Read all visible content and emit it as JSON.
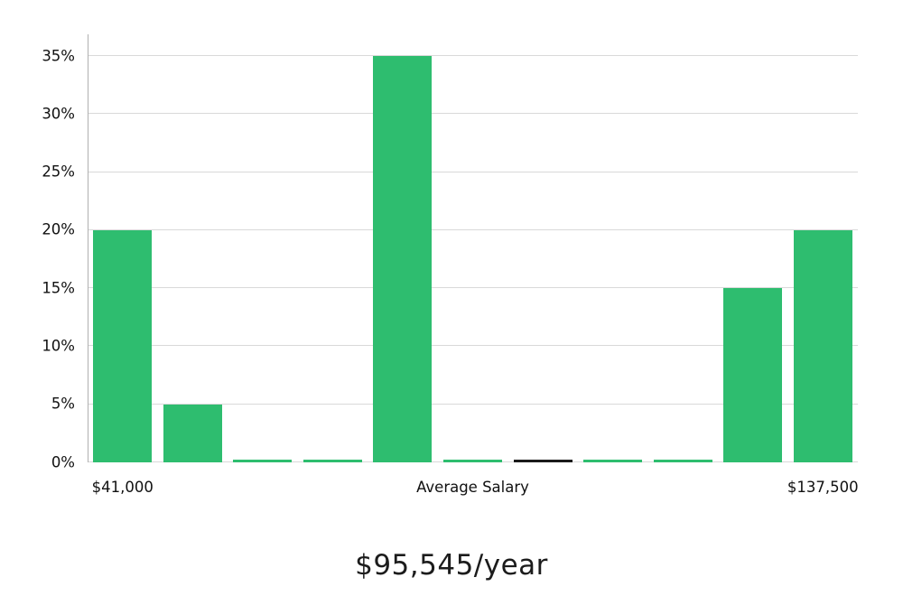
{
  "chart_data": {
    "type": "bar",
    "title": "$95,545/year",
    "values": [
      20,
      5,
      0.2,
      0.2,
      35,
      0.2,
      0.2,
      0.2,
      0.2,
      15,
      20
    ],
    "highlight_index": 6,
    "ylim": [
      0,
      35
    ],
    "y_ticks": [
      0,
      5,
      10,
      15,
      20,
      25,
      30,
      35
    ],
    "y_tick_labels": [
      "0%",
      "5%",
      "10%",
      "15%",
      "20%",
      "25%",
      "30%",
      "35%"
    ],
    "x_tick_labels": [
      {
        "label": "$41,000",
        "bar_index": 0
      },
      {
        "label": "Average Salary",
        "bar_index": 5
      },
      {
        "label": "$137,500",
        "bar_index": 10
      }
    ],
    "colors": {
      "bar": "#2EBD6F",
      "highlight_bar": "#1A1A1A",
      "grid": "#D9D9D9",
      "axis": "#B0B0B0",
      "text": "#111111"
    },
    "grid": "horizontal",
    "legend": "none"
  }
}
